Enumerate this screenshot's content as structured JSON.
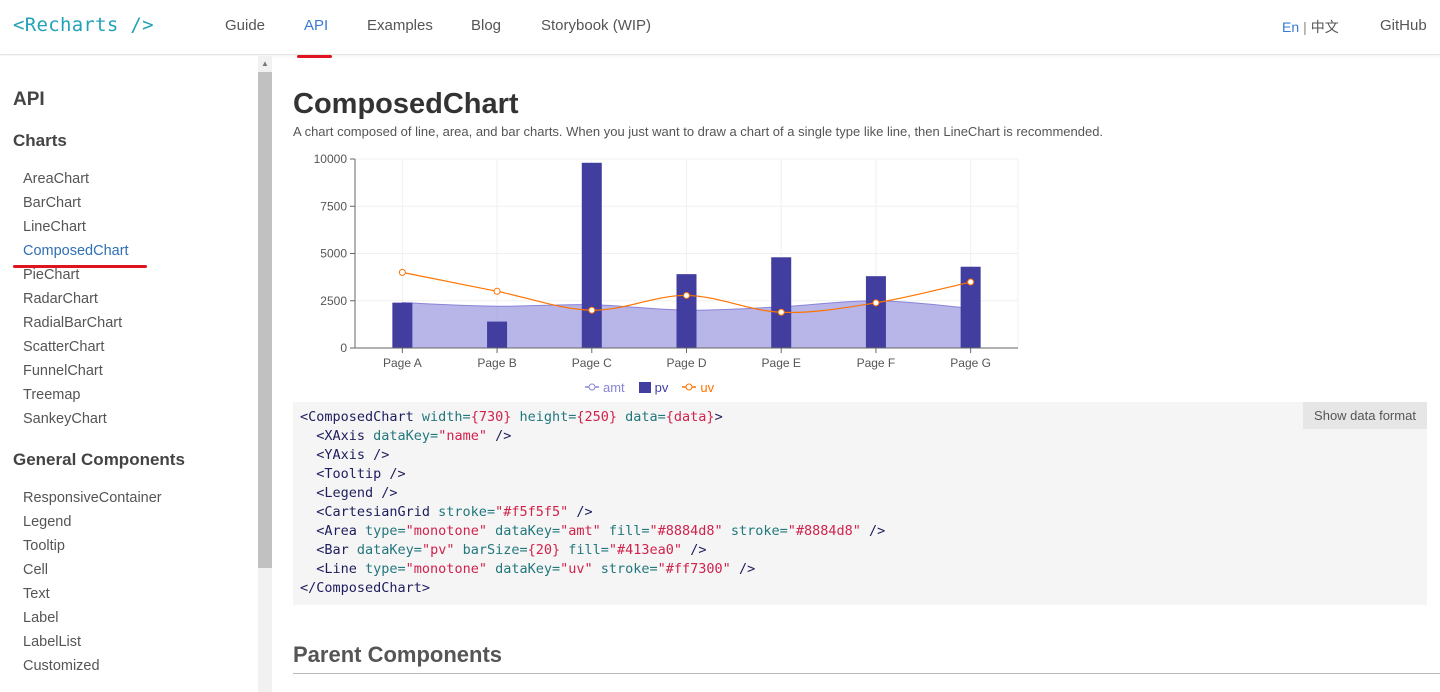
{
  "header": {
    "logo": "<Recharts />",
    "nav": [
      "Guide",
      "API",
      "Examples",
      "Blog",
      "Storybook (WIP)"
    ],
    "active_nav": "API",
    "lang_en": "En",
    "lang_sep": "|",
    "lang_zh": "中文",
    "github": "GitHub"
  },
  "sidebar": {
    "heading": "API",
    "sections": [
      {
        "title": "Charts",
        "items": [
          "AreaChart",
          "BarChart",
          "LineChart",
          "ComposedChart",
          "PieChart",
          "RadarChart",
          "RadialBarChart",
          "ScatterChart",
          "FunnelChart",
          "Treemap",
          "SankeyChart"
        ]
      },
      {
        "title": "General Components",
        "items": [
          "ResponsiveContainer",
          "Legend",
          "Tooltip",
          "Cell",
          "Text",
          "Label",
          "LabelList",
          "Customized"
        ]
      }
    ],
    "active_item": "ComposedChart"
  },
  "main": {
    "title": "ComposedChart",
    "description": "A chart composed of line, area, and bar charts. When you just want to draw a chart of a single type like line, then LineChart is recommended.",
    "show_data_button": "Show data format",
    "parent_heading": "Parent Components",
    "code": [
      [
        [
          "tag",
          "<ComposedChart "
        ],
        [
          "attr",
          "width="
        ],
        [
          "str",
          "{730}"
        ],
        [
          "attr",
          " height="
        ],
        [
          "str",
          "{250}"
        ],
        [
          "attr",
          " data="
        ],
        [
          "str",
          "{data}"
        ],
        [
          "tag",
          ">"
        ]
      ],
      [
        [
          "tag",
          "  <XAxis "
        ],
        [
          "attr",
          "dataKey="
        ],
        [
          "str",
          "\"name\""
        ],
        [
          "tag",
          " />"
        ]
      ],
      [
        [
          "tag",
          "  <YAxis />"
        ]
      ],
      [
        [
          "tag",
          "  <Tooltip />"
        ]
      ],
      [
        [
          "tag",
          "  <Legend />"
        ]
      ],
      [
        [
          "tag",
          "  <CartesianGrid "
        ],
        [
          "attr",
          "stroke="
        ],
        [
          "str",
          "\"#f5f5f5\""
        ],
        [
          "tag",
          " />"
        ]
      ],
      [
        [
          "tag",
          "  <Area "
        ],
        [
          "attr",
          "type="
        ],
        [
          "str",
          "\"monotone\""
        ],
        [
          "attr",
          " dataKey="
        ],
        [
          "str",
          "\"amt\""
        ],
        [
          "attr",
          " fill="
        ],
        [
          "str",
          "\"#8884d8\""
        ],
        [
          "attr",
          " stroke="
        ],
        [
          "str",
          "\"#8884d8\""
        ],
        [
          "tag",
          " />"
        ]
      ],
      [
        [
          "tag",
          "  <Bar "
        ],
        [
          "attr",
          "dataKey="
        ],
        [
          "str",
          "\"pv\""
        ],
        [
          "attr",
          " barSize="
        ],
        [
          "str",
          "{20}"
        ],
        [
          "attr",
          " fill="
        ],
        [
          "str",
          "\"#413ea0\""
        ],
        [
          "tag",
          " />"
        ]
      ],
      [
        [
          "tag",
          "  <Line "
        ],
        [
          "attr",
          "type="
        ],
        [
          "str",
          "\"monotone\""
        ],
        [
          "attr",
          " dataKey="
        ],
        [
          "str",
          "\"uv\""
        ],
        [
          "attr",
          " stroke="
        ],
        [
          "str",
          "\"#ff7300\""
        ],
        [
          "tag",
          " />"
        ]
      ],
      [
        [
          "tag",
          "</ComposedChart>"
        ]
      ]
    ]
  },
  "chart_data": {
    "type": "bar",
    "categories": [
      "Page A",
      "Page B",
      "Page C",
      "Page D",
      "Page E",
      "Page F",
      "Page G"
    ],
    "series": [
      {
        "name": "amt",
        "kind": "area",
        "color": "#8884d8",
        "values": [
          2400,
          2210,
          2290,
          2000,
          2181,
          2500,
          2100
        ]
      },
      {
        "name": "pv",
        "kind": "bar",
        "color": "#413ea0",
        "values": [
          2400,
          1398,
          9800,
          3908,
          4800,
          3800,
          4300
        ]
      },
      {
        "name": "uv",
        "kind": "line",
        "color": "#ff7300",
        "values": [
          4000,
          3000,
          2000,
          2780,
          1890,
          2390,
          3490
        ]
      }
    ],
    "yticks": [
      0,
      2500,
      5000,
      7500,
      10000
    ],
    "ylim": [
      0,
      10000
    ],
    "grid": true,
    "legend": "bottom"
  }
}
